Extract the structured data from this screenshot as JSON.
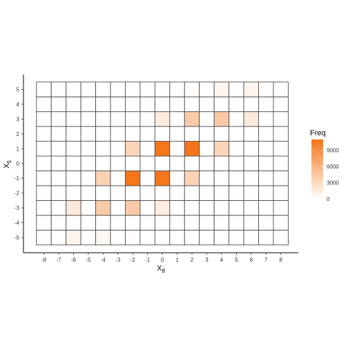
{
  "chart_data": {
    "type": "heatmap",
    "xlabel": "X",
    "xlabel_sub": "8",
    "ylabel": "X",
    "ylabel_sub": "5",
    "x_ticks": [
      -8,
      -7,
      -6,
      -5,
      -4,
      -3,
      -2,
      -1,
      0,
      1,
      2,
      3,
      4,
      5,
      6,
      7,
      8
    ],
    "y_ticks": [
      -5,
      -4,
      -3,
      -2,
      -1,
      0,
      1,
      2,
      3,
      4,
      5
    ],
    "xlim": [
      -9,
      9
    ],
    "ylim": [
      -6,
      6
    ],
    "grid": false,
    "legend": {
      "title": "Freq",
      "breaks": [
        0,
        3000,
        6000,
        9000
      ],
      "max": 11000,
      "low_color": "#FFFFFF",
      "high_color": "#F5751A",
      "position": "right"
    },
    "tile_border_color": "#4D4D4D",
    "cells": [
      {
        "x": -8,
        "y": -5,
        "freq": 150
      },
      {
        "x": -6,
        "y": -5,
        "freq": 900
      },
      {
        "x": -4,
        "y": -5,
        "freq": 700
      },
      {
        "x": -2,
        "y": -5,
        "freq": 200
      },
      {
        "x": -6,
        "y": -3,
        "freq": 1800
      },
      {
        "x": -4,
        "y": -3,
        "freq": 4200
      },
      {
        "x": -2,
        "y": -3,
        "freq": 4300
      },
      {
        "x": 0,
        "y": -3,
        "freq": 1500
      },
      {
        "x": -4,
        "y": -1,
        "freq": 3600
      },
      {
        "x": -2,
        "y": -1,
        "freq": 11000
      },
      {
        "x": 0,
        "y": -1,
        "freq": 11000
      },
      {
        "x": 2,
        "y": -1,
        "freq": 3500
      },
      {
        "x": -2,
        "y": 1,
        "freq": 3400
      },
      {
        "x": 0,
        "y": 1,
        "freq": 11000
      },
      {
        "x": 2,
        "y": 1,
        "freq": 11000
      },
      {
        "x": 4,
        "y": 1,
        "freq": 3400
      },
      {
        "x": 0,
        "y": 3,
        "freq": 1600
      },
      {
        "x": 2,
        "y": 3,
        "freq": 4200
      },
      {
        "x": 4,
        "y": 3,
        "freq": 4300
      },
      {
        "x": 6,
        "y": 3,
        "freq": 1700
      },
      {
        "x": 2,
        "y": 5,
        "freq": 250
      },
      {
        "x": 4,
        "y": 5,
        "freq": 800
      },
      {
        "x": 6,
        "y": 5,
        "freq": 900
      },
      {
        "x": 8,
        "y": 5,
        "freq": 200
      }
    ]
  }
}
